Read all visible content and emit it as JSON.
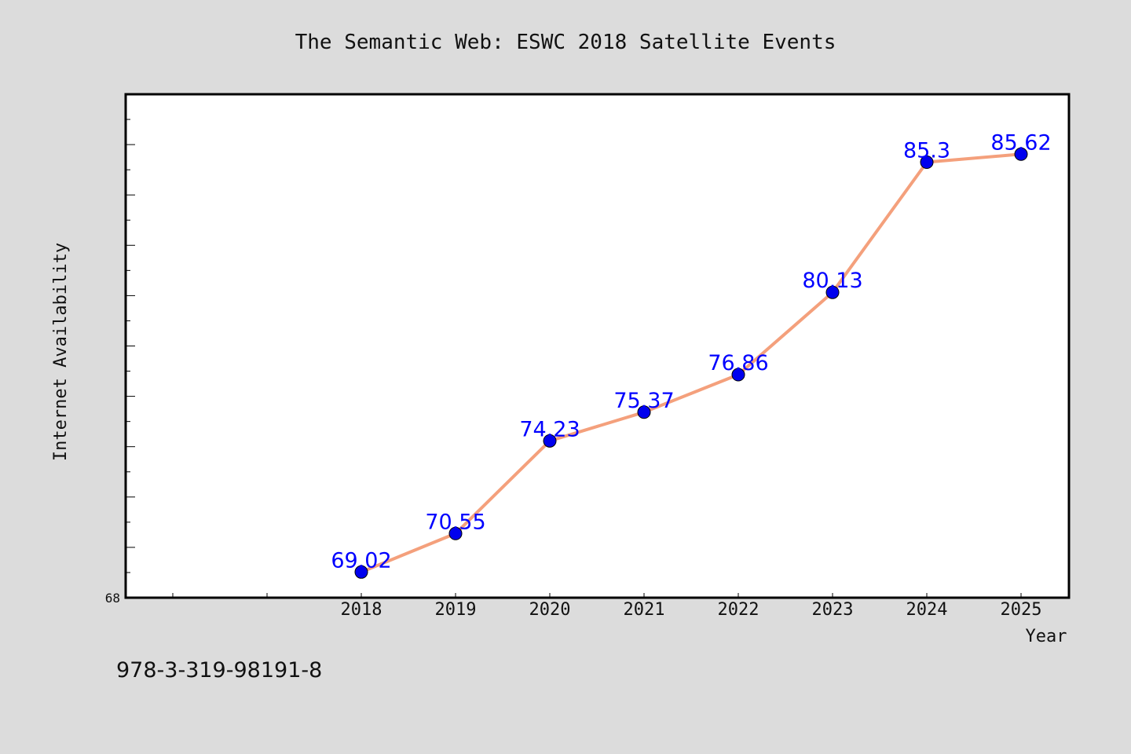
{
  "chart_data": {
    "type": "line",
    "title": "The Semantic Web: ESWC 2018 Satellite Events",
    "xlabel": "Year",
    "ylabel": "Internet Availability",
    "x": [
      "2018",
      "2019",
      "2020",
      "2021",
      "2022",
      "2023",
      "2024",
      "2025"
    ],
    "series": [
      {
        "values": [
          69.02,
          70.55,
          74.23,
          75.37,
          76.86,
          80.13,
          85.3,
          85.62
        ],
        "data_labels": [
          "69.02",
          "70.55",
          "74.23",
          "75.37",
          "76.86",
          "80.13",
          "85.3",
          "85.62"
        ]
      }
    ],
    "ylim": [
      68,
      88
    ],
    "y_tick_labels": [
      "68"
    ],
    "grid": false,
    "legend": "none",
    "line_color": "#f4a07c",
    "marker_color": "#0000ee",
    "label_color": "#0000ff"
  },
  "footer": {
    "isbn": "978-3-319-98191-8"
  }
}
